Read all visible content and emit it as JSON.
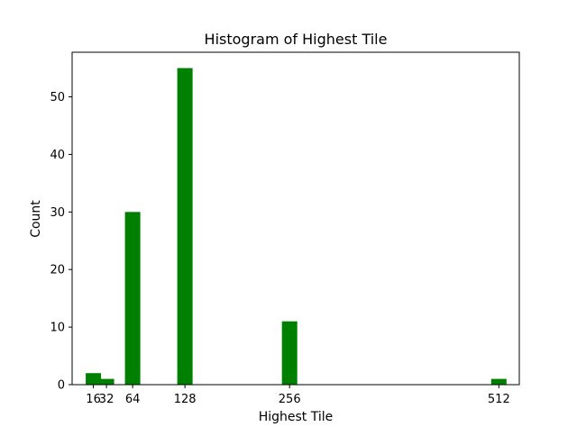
{
  "chart_data": {
    "type": "bar",
    "title": "Histogram of Highest Tile",
    "xlabel": "Highest Tile",
    "ylabel": "Count",
    "bar_color": "#008000",
    "x_ticks": [
      16,
      32,
      64,
      128,
      256,
      512
    ],
    "y_ticks": [
      0,
      10,
      20,
      30,
      40,
      50
    ],
    "xlim": [
      -10,
      537
    ],
    "ylim": [
      0,
      57.75
    ],
    "bin_width": 20,
    "bars": [
      {
        "x": 16,
        "value": 2
      },
      {
        "x": 32,
        "value": 1
      },
      {
        "x": 64,
        "value": 30
      },
      {
        "x": 128,
        "value": 55
      },
      {
        "x": 256,
        "value": 11
      },
      {
        "x": 512,
        "value": 1
      }
    ],
    "grid": false,
    "legend": "none"
  }
}
